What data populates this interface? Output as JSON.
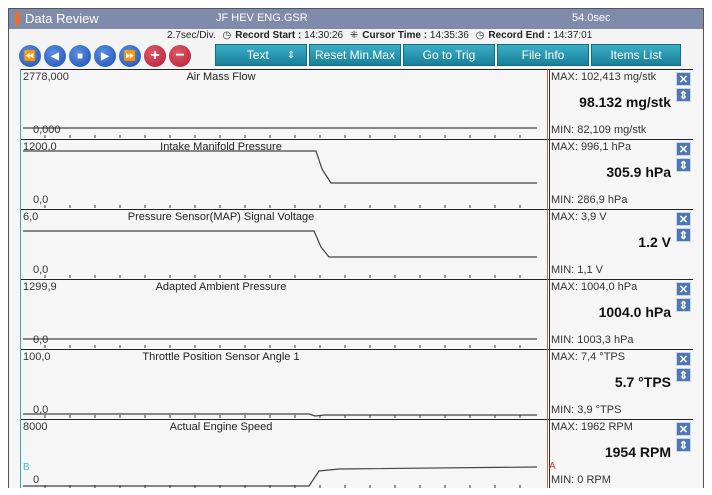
{
  "title": {
    "app": "Data Review",
    "file": "JF HEV ENG.GSR",
    "duration": "54.0sec"
  },
  "info": {
    "div": "2.7sec/Div.",
    "record_start_label": "Record Start :",
    "record_start": "14:30:26",
    "cursor_label": "Cursor Time :",
    "cursor": "14:35:36",
    "record_end_label": "Record End :",
    "record_end": "14:37:01"
  },
  "controls": {
    "rewind": "⏪",
    "prev": "◀",
    "stop": "■",
    "play": "▶",
    "ffwd": "⏩",
    "zoom_in": "+",
    "zoom_out": "−"
  },
  "toolbar": {
    "text": "Text",
    "sort": "⇕",
    "reset": "Reset Min.Max",
    "trig": "Go to Trig",
    "file_info": "File Info",
    "items": "Items List"
  },
  "cursors": {
    "a": "A",
    "b": "B"
  },
  "channels": [
    {
      "name": "Air Mass Flow",
      "axis_max": "2778,000",
      "axis_min": "0,000",
      "max": "MAX: 102,413 mg/stk",
      "value": "98.132 mg/stk",
      "min": "MIN: 82,109 mg/stk"
    },
    {
      "name": "Intake Manifold Pressure",
      "axis_max": "1200,0",
      "axis_min": "0,0",
      "max": "MAX: 996,1 hPa",
      "value": "305.9 hPa",
      "min": "MIN: 286,9 hPa"
    },
    {
      "name": "Pressure Sensor(MAP) Signal Voltage",
      "axis_max": "6,0",
      "axis_min": "0,0",
      "max": "MAX:   3,9 V",
      "value": "1.2 V",
      "min": "MIN:   1,1 V"
    },
    {
      "name": "Adapted Ambient Pressure",
      "axis_max": "1299,9",
      "axis_min": "0,0",
      "max": "MAX: 1004,0 hPa",
      "value": "1004.0 hPa",
      "min": "MIN: 1003,3 hPa"
    },
    {
      "name": "Throttle Position Sensor Angle 1",
      "axis_max": "100,0",
      "axis_min": "0,0",
      "max": "MAX:   7,4 °TPS",
      "value": "5.7 °TPS",
      "min": "MIN:   3,9 °TPS"
    },
    {
      "name": "Actual Engine Speed",
      "axis_max": "8000",
      "axis_min": "0",
      "max": "MAX:   1962 RPM",
      "value": "1954 RPM",
      "min": "MIN:     0 RPM"
    }
  ],
  "colors": {
    "titlebar": "#7f8bab",
    "button": "#1a7f98",
    "cursor_a": "#c96a3a",
    "cursor_b": "#3aaba0"
  }
}
